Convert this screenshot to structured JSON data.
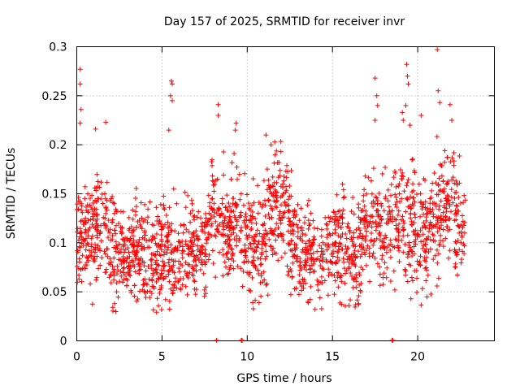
{
  "chart_data": {
    "type": "scatter",
    "title": "Day 157 of 2025, SRMTID for receiver invr",
    "xlabel": "GPS time / hours",
    "ylabel": "SRMTID / TECUs",
    "xlim": [
      0,
      24.5
    ],
    "ylim": [
      0,
      0.3
    ],
    "x_ticks": [
      0,
      5,
      10,
      15,
      20
    ],
    "x_tick_labels": [
      "0",
      "5",
      "10",
      "15",
      "20"
    ],
    "y_ticks": [
      0,
      0.05,
      0.1,
      0.15,
      0.2,
      0.25,
      0.3
    ],
    "y_tick_labels": [
      "0",
      "0.05",
      "0.1",
      "0.15",
      "0.2",
      "0.25",
      "0.3"
    ],
    "grid": true,
    "marker": "plus",
    "color": "#ff0000",
    "envelope": {
      "hours": [
        0,
        0.5,
        1,
        1.5,
        2,
        2.5,
        3,
        3.5,
        4,
        4.5,
        5,
        5.5,
        6,
        6.5,
        7,
        7.5,
        8,
        8.5,
        9,
        9.5,
        10,
        10.5,
        11,
        11.5,
        12,
        12.5,
        13,
        13.5,
        14,
        14.5,
        15,
        15.5,
        16,
        16.5,
        17,
        17.5,
        18,
        18.5,
        19,
        19.5,
        20,
        20.5,
        21,
        21.5,
        22,
        22.5,
        22.8
      ],
      "median": [
        0.11,
        0.105,
        0.11,
        0.11,
        0.1,
        0.085,
        0.085,
        0.09,
        0.085,
        0.08,
        0.085,
        0.09,
        0.09,
        0.095,
        0.09,
        0.1,
        0.14,
        0.13,
        0.115,
        0.12,
        0.1,
        0.095,
        0.1,
        0.13,
        0.14,
        0.12,
        0.09,
        0.09,
        0.085,
        0.085,
        0.1,
        0.105,
        0.09,
        0.09,
        0.12,
        0.13,
        0.11,
        0.12,
        0.13,
        0.125,
        0.1,
        0.11,
        0.12,
        0.15,
        0.14,
        0.11,
        0.11
      ],
      "spread": [
        0.03,
        0.035,
        0.035,
        0.035,
        0.035,
        0.03,
        0.03,
        0.03,
        0.03,
        0.03,
        0.035,
        0.035,
        0.03,
        0.03,
        0.03,
        0.035,
        0.03,
        0.035,
        0.03,
        0.035,
        0.035,
        0.03,
        0.035,
        0.035,
        0.035,
        0.035,
        0.03,
        0.03,
        0.03,
        0.03,
        0.035,
        0.035,
        0.03,
        0.035,
        0.035,
        0.035,
        0.035,
        0.04,
        0.04,
        0.04,
        0.035,
        0.035,
        0.04,
        0.045,
        0.04,
        0.035,
        0.03
      ]
    },
    "outliers": [
      [
        0.2,
        0.277
      ],
      [
        0.2,
        0.262
      ],
      [
        0.25,
        0.236
      ],
      [
        0.2,
        0.222
      ],
      [
        1.1,
        0.216
      ],
      [
        1.7,
        0.223
      ],
      [
        5.55,
        0.265
      ],
      [
        5.6,
        0.262
      ],
      [
        5.5,
        0.25
      ],
      [
        5.6,
        0.245
      ],
      [
        5.4,
        0.215
      ],
      [
        8.3,
        0.241
      ],
      [
        8.3,
        0.23
      ],
      [
        9.35,
        0.222
      ],
      [
        9.3,
        0.215
      ],
      [
        11.1,
        0.21
      ],
      [
        11.4,
        0.2
      ],
      [
        17.5,
        0.268
      ],
      [
        17.6,
        0.25
      ],
      [
        17.65,
        0.24
      ],
      [
        17.5,
        0.225
      ],
      [
        19.1,
        0.233
      ],
      [
        19.15,
        0.225
      ],
      [
        19.35,
        0.282
      ],
      [
        19.4,
        0.27
      ],
      [
        19.45,
        0.262
      ],
      [
        19.3,
        0.24
      ],
      [
        21.15,
        0.297
      ],
      [
        21.2,
        0.255
      ],
      [
        21.3,
        0.243
      ],
      [
        21.9,
        0.241
      ],
      [
        22.0,
        0.225
      ],
      [
        19.55,
        0.22
      ],
      [
        20.2,
        0.23
      ]
    ],
    "zero_points": [
      8.2,
      9.65,
      9.7,
      18.5,
      18.55
    ]
  }
}
